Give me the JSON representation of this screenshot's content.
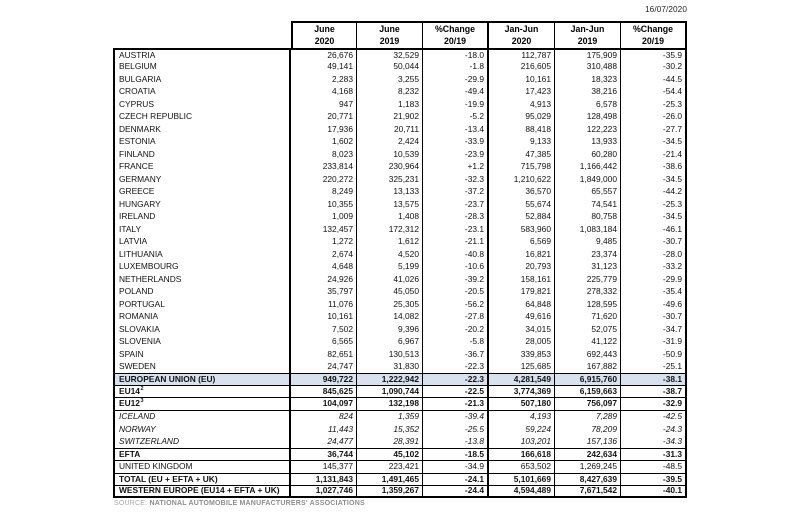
{
  "meta": {
    "date": "16/07/2020"
  },
  "colors": {
    "highlight_row_bg": "#d9e1ee",
    "border": "#000000",
    "source_gray": "#8c8c8c"
  },
  "source": {
    "prefix": "SOURCE:",
    "text": "NATIONAL AUTOMOBILE MANUFACTURERS' ASSOCIATIONS"
  },
  "table": {
    "headers": [
      {
        "line1": "June",
        "line2": "2020"
      },
      {
        "line1": "June",
        "line2": "2019"
      },
      {
        "line1": "%Change",
        "line2": "20/19"
      },
      {
        "line1": "Jan-Jun",
        "line2": "2020"
      },
      {
        "line1": "Jan-Jun",
        "line2": "2019"
      },
      {
        "line1": "%Change",
        "line2": "20/19"
      }
    ],
    "rows": [
      {
        "name": "AUSTRIA",
        "kind": "country",
        "sup": "",
        "values": [
          "26,676",
          "32,529",
          "-18.0",
          "112,787",
          "175,909",
          "-35.9"
        ]
      },
      {
        "name": "BELGIUM",
        "kind": "country",
        "sup": "",
        "values": [
          "49,141",
          "50,044",
          "-1.8",
          "216,605",
          "310,488",
          "-30.2"
        ]
      },
      {
        "name": "BULGARIA",
        "kind": "country",
        "sup": "",
        "values": [
          "2,283",
          "3,255",
          "-29.9",
          "10,161",
          "18,323",
          "-44.5"
        ]
      },
      {
        "name": "CROATIA",
        "kind": "country",
        "sup": "",
        "values": [
          "4,168",
          "8,232",
          "-49.4",
          "17,423",
          "38,216",
          "-54.4"
        ]
      },
      {
        "name": "CYPRUS",
        "kind": "country",
        "sup": "",
        "values": [
          "947",
          "1,183",
          "-19.9",
          "4,913",
          "6,578",
          "-25.3"
        ]
      },
      {
        "name": "CZECH REPUBLIC",
        "kind": "country",
        "sup": "",
        "values": [
          "20,771",
          "21,902",
          "-5.2",
          "95,029",
          "128,498",
          "-26.0"
        ]
      },
      {
        "name": "DENMARK",
        "kind": "country",
        "sup": "",
        "values": [
          "17,936",
          "20,711",
          "-13.4",
          "88,418",
          "122,223",
          "-27.7"
        ]
      },
      {
        "name": "ESTONIA",
        "kind": "country",
        "sup": "",
        "values": [
          "1,602",
          "2,424",
          "-33.9",
          "9,133",
          "13,933",
          "-34.5"
        ]
      },
      {
        "name": "FINLAND",
        "kind": "country",
        "sup": "",
        "values": [
          "8,023",
          "10,539",
          "-23.9",
          "47,385",
          "60,280",
          "-21.4"
        ]
      },
      {
        "name": "FRANCE",
        "kind": "country",
        "sup": "",
        "values": [
          "233,814",
          "230,964",
          "+1.2",
          "715,798",
          "1,166,442",
          "-38.6"
        ]
      },
      {
        "name": "GERMANY",
        "kind": "country",
        "sup": "",
        "values": [
          "220,272",
          "325,231",
          "-32.3",
          "1,210,622",
          "1,849,000",
          "-34.5"
        ]
      },
      {
        "name": "GREECE",
        "kind": "country",
        "sup": "",
        "values": [
          "8,249",
          "13,133",
          "-37.2",
          "36,570",
          "65,557",
          "-44.2"
        ]
      },
      {
        "name": "HUNGARY",
        "kind": "country",
        "sup": "",
        "values": [
          "10,355",
          "13,575",
          "-23.7",
          "55,674",
          "74,541",
          "-25.3"
        ]
      },
      {
        "name": "IRELAND",
        "kind": "country",
        "sup": "",
        "values": [
          "1,009",
          "1,408",
          "-28.3",
          "52,884",
          "80,758",
          "-34.5"
        ]
      },
      {
        "name": "ITALY",
        "kind": "country",
        "sup": "",
        "values": [
          "132,457",
          "172,312",
          "-23.1",
          "583,960",
          "1,083,184",
          "-46.1"
        ]
      },
      {
        "name": "LATVIA",
        "kind": "country",
        "sup": "",
        "values": [
          "1,272",
          "1,612",
          "-21.1",
          "6,569",
          "9,485",
          "-30.7"
        ]
      },
      {
        "name": "LITHUANIA",
        "kind": "country",
        "sup": "",
        "values": [
          "2,674",
          "4,520",
          "-40.8",
          "16,821",
          "23,374",
          "-28.0"
        ]
      },
      {
        "name": "LUXEMBOURG",
        "kind": "country",
        "sup": "",
        "values": [
          "4,648",
          "5,199",
          "-10.6",
          "20,793",
          "31,123",
          "-33.2"
        ]
      },
      {
        "name": "NETHERLANDS",
        "kind": "country",
        "sup": "",
        "values": [
          "24,926",
          "41,026",
          "-39.2",
          "158,161",
          "225,779",
          "-29.9"
        ]
      },
      {
        "name": "POLAND",
        "kind": "country",
        "sup": "",
        "values": [
          "35,797",
          "45,050",
          "-20.5",
          "179,821",
          "278,332",
          "-35.4"
        ]
      },
      {
        "name": "PORTUGAL",
        "kind": "country",
        "sup": "",
        "values": [
          "11,076",
          "25,305",
          "-56.2",
          "64,848",
          "128,595",
          "-49.6"
        ]
      },
      {
        "name": "ROMANIA",
        "kind": "country",
        "sup": "",
        "values": [
          "10,161",
          "14,082",
          "-27.8",
          "49,616",
          "71,620",
          "-30.7"
        ]
      },
      {
        "name": "SLOVAKIA",
        "kind": "country",
        "sup": "",
        "values": [
          "7,502",
          "9,396",
          "-20.2",
          "34,015",
          "52,075",
          "-34.7"
        ]
      },
      {
        "name": "SLOVENIA",
        "kind": "country",
        "sup": "",
        "values": [
          "6,565",
          "6,967",
          "-5.8",
          "28,005",
          "41,122",
          "-31.9"
        ]
      },
      {
        "name": "SPAIN",
        "kind": "country",
        "sup": "",
        "values": [
          "82,651",
          "130,513",
          "-36.7",
          "339,853",
          "692,443",
          "-50.9"
        ]
      },
      {
        "name": "SWEDEN",
        "kind": "country",
        "sup": "",
        "values": [
          "24,747",
          "31,830",
          "-22.3",
          "125,685",
          "167,882",
          "-25.1"
        ]
      },
      {
        "name": "EUROPEAN UNION (EU)",
        "kind": "eu",
        "sup": "",
        "values": [
          "949,722",
          "1,222,942",
          "-22.3",
          "4,281,549",
          "6,915,760",
          "-38.1"
        ]
      },
      {
        "name": "EU14",
        "kind": "subtotal",
        "sup": "2",
        "values": [
          "845,625",
          "1,090,744",
          "-22.5",
          "3,774,369",
          "6,159,663",
          "-38.7"
        ]
      },
      {
        "name": "EU12",
        "kind": "subtotal",
        "sup": "3",
        "values": [
          "104,097",
          "132,198",
          "-21.3",
          "507,180",
          "756,097",
          "-32.9"
        ]
      },
      {
        "name": "ICELAND",
        "kind": "efta-country",
        "sup": "",
        "values": [
          "824",
          "1,359",
          "-39.4",
          "4,193",
          "7,289",
          "-42.5"
        ]
      },
      {
        "name": "NORWAY",
        "kind": "efta-country",
        "sup": "",
        "values": [
          "11,443",
          "15,352",
          "-25.5",
          "59,224",
          "78,209",
          "-24.3"
        ]
      },
      {
        "name": "SWITZERLAND",
        "kind": "efta-country",
        "sup": "",
        "values": [
          "24,477",
          "28,391",
          "-13.8",
          "103,201",
          "157,136",
          "-34.3"
        ]
      },
      {
        "name": "EFTA",
        "kind": "efta-total",
        "sup": "",
        "values": [
          "36,744",
          "45,102",
          "-18.5",
          "166,618",
          "242,634",
          "-31.3"
        ]
      },
      {
        "name": "UNITED KINGDOM",
        "kind": "country",
        "sup": "",
        "values": [
          "145,377",
          "223,421",
          "-34.9",
          "653,502",
          "1,269,245",
          "-48.5"
        ]
      },
      {
        "name": "TOTAL (EU + EFTA + UK)",
        "kind": "grand-total",
        "sup": "",
        "values": [
          "1,131,843",
          "1,491,465",
          "-24.1",
          "5,101,669",
          "8,427,639",
          "-39.5"
        ]
      },
      {
        "name": "WESTERN EUROPE (EU14 + EFTA + UK)",
        "kind": "western",
        "sup": "",
        "values": [
          "1,027,746",
          "1,359,267",
          "-24.4",
          "4,594,489",
          "7,671,542",
          "-40.1"
        ]
      }
    ]
  }
}
